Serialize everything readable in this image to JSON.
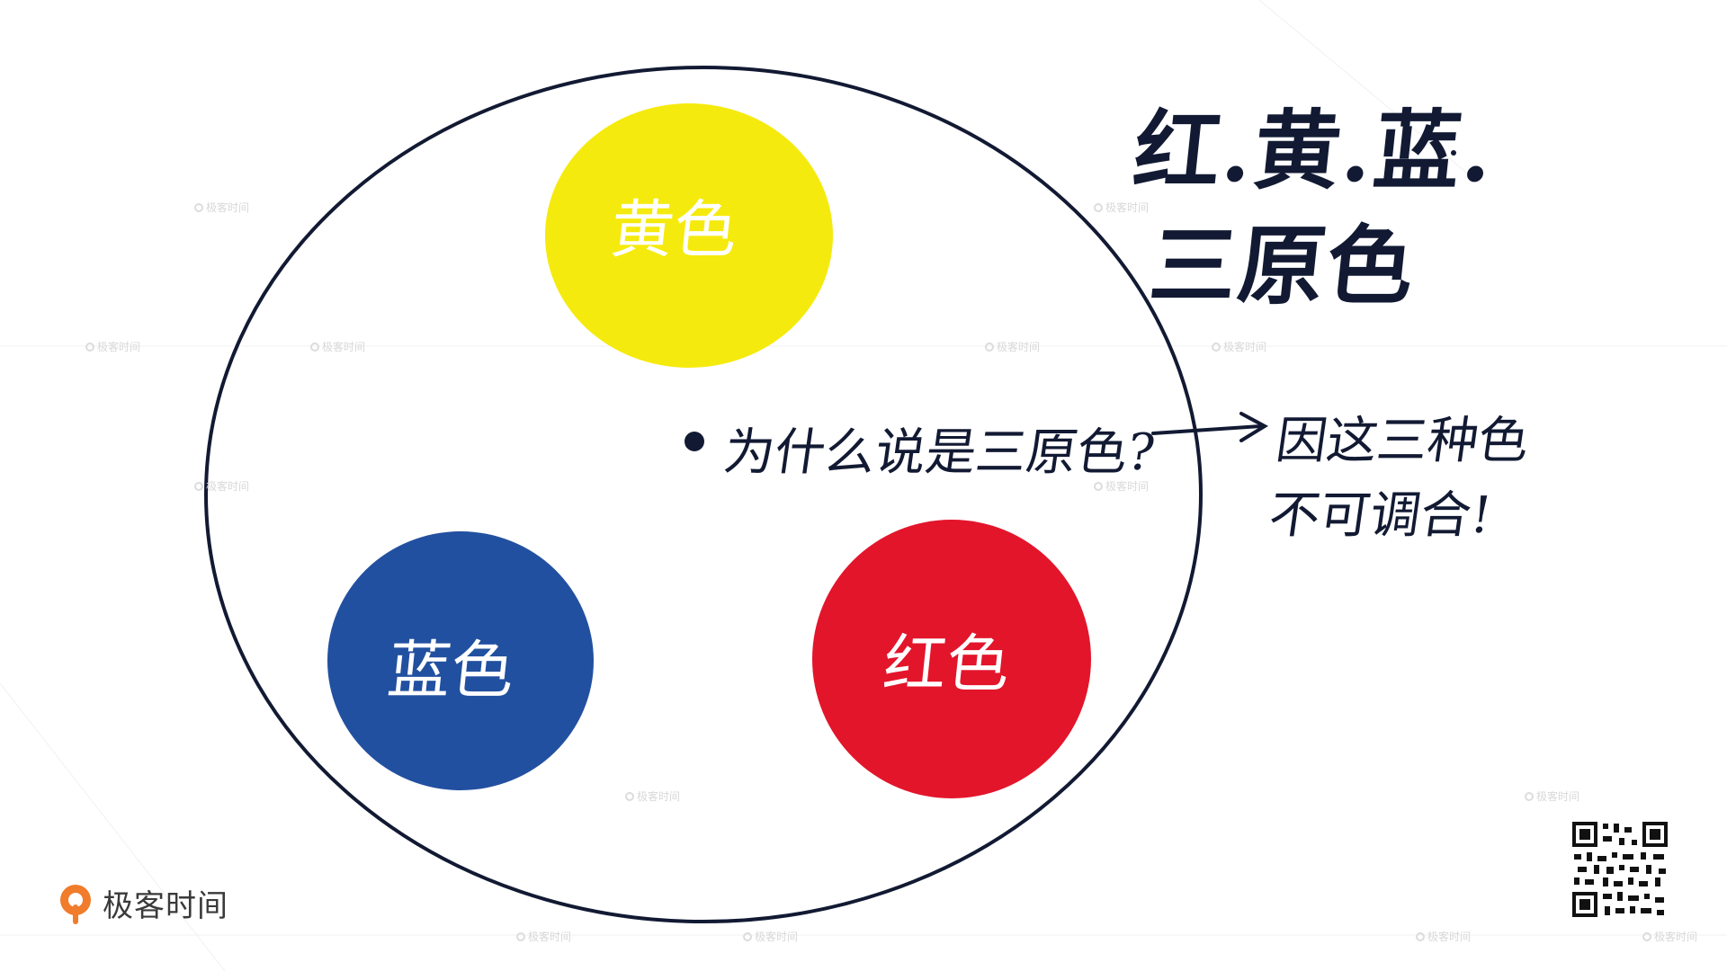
{
  "title": {
    "line1": "红.黄.蓝.",
    "line2": "三原色"
  },
  "circles": [
    {
      "id": "yellow",
      "label": "黄色",
      "color": "#f5ea0d"
    },
    {
      "id": "blue",
      "label": "蓝色",
      "color": "#2250a0"
    },
    {
      "id": "red",
      "label": "红色",
      "color": "#e3152b"
    }
  ],
  "question": "为什么说是三原色?",
  "answer": {
    "line1": "因这三种色",
    "line2": "不可调合!"
  },
  "brand": {
    "name": "极客时间",
    "accent": "#f07c2c"
  },
  "watermark_text": "极客时间",
  "outline_color": "#121a33"
}
